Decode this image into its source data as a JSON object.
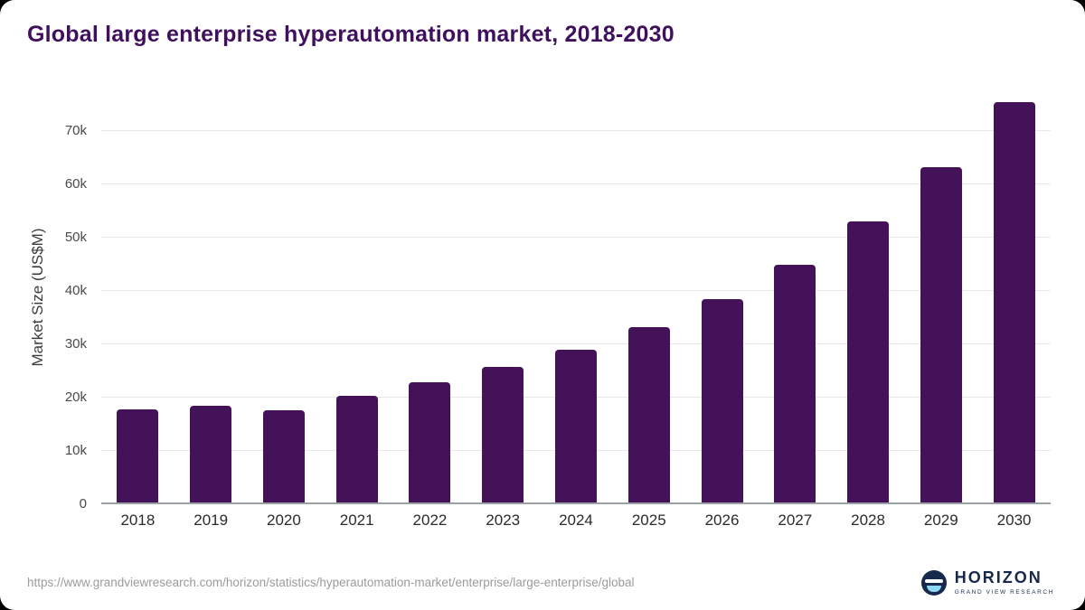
{
  "title": "Global large enterprise hyperautomation market, 2018-2030",
  "footer": {
    "source_url": "https://www.grandviewresearch.com/horizon/statistics/hyperautomation-market/enterprise/large-enterprise/global",
    "logo": {
      "name": "HORIZON",
      "subtitle": "GRAND VIEW RESEARCH"
    }
  },
  "colors": {
    "bar": "#441259",
    "title": "#40105e",
    "logo_navy": "#17294d",
    "logo_light_blue": "#8ed8f8",
    "gridline": "#e8e8e8"
  },
  "chart_data": {
    "type": "bar",
    "title": "Global large enterprise hyperautomation market, 2018-2030",
    "xlabel": "",
    "ylabel": "Market Size (US$M)",
    "categories": [
      "2018",
      "2019",
      "2020",
      "2021",
      "2022",
      "2023",
      "2024",
      "2025",
      "2026",
      "2027",
      "2028",
      "2029",
      "2030"
    ],
    "values": [
      17800,
      18500,
      17700,
      20400,
      22800,
      25700,
      29000,
      33200,
      38400,
      44900,
      53000,
      63200,
      75400
    ],
    "ylim": [
      0,
      77600
    ],
    "yticks": [
      0,
      10000,
      20000,
      30000,
      40000,
      50000,
      60000,
      70000
    ],
    "ytick_labels": [
      "0",
      "10k",
      "20k",
      "30k",
      "40k",
      "50k",
      "60k",
      "70k"
    ],
    "grid": "horizontal",
    "legend": "none"
  }
}
